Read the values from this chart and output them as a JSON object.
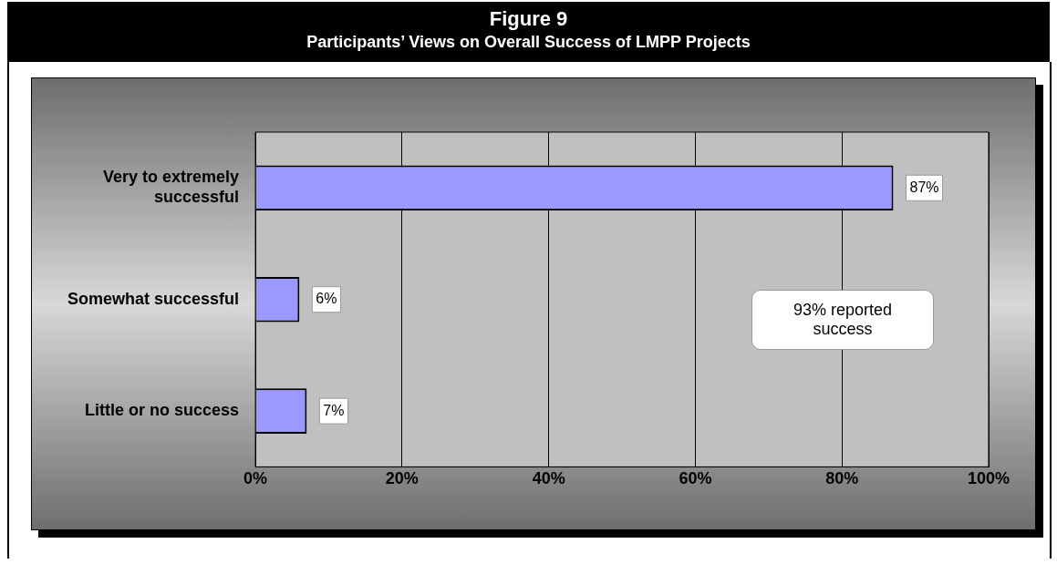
{
  "chart_data": {
    "type": "bar",
    "orientation": "horizontal",
    "title": "Figure 9",
    "subtitle": "Participants’ Views on Overall Success of LMPP Projects",
    "categories": [
      "Very to extremely successful",
      "Somewhat successful",
      "Little or no success"
    ],
    "values": [
      87,
      6,
      7
    ],
    "value_labels": [
      "87%",
      "6%",
      "7%"
    ],
    "color": "#9999ff",
    "xlim": [
      0,
      100
    ],
    "xticks": [
      {
        "value": 0,
        "label": "0%"
      },
      {
        "value": 20,
        "label": "20%"
      },
      {
        "value": 40,
        "label": "40%"
      },
      {
        "value": 60,
        "label": "60%"
      },
      {
        "value": 80,
        "label": "80%"
      },
      {
        "value": 100,
        "label": "100%"
      }
    ],
    "grid": "x",
    "legend": false,
    "annotations": [
      "93% reported success"
    ]
  }
}
